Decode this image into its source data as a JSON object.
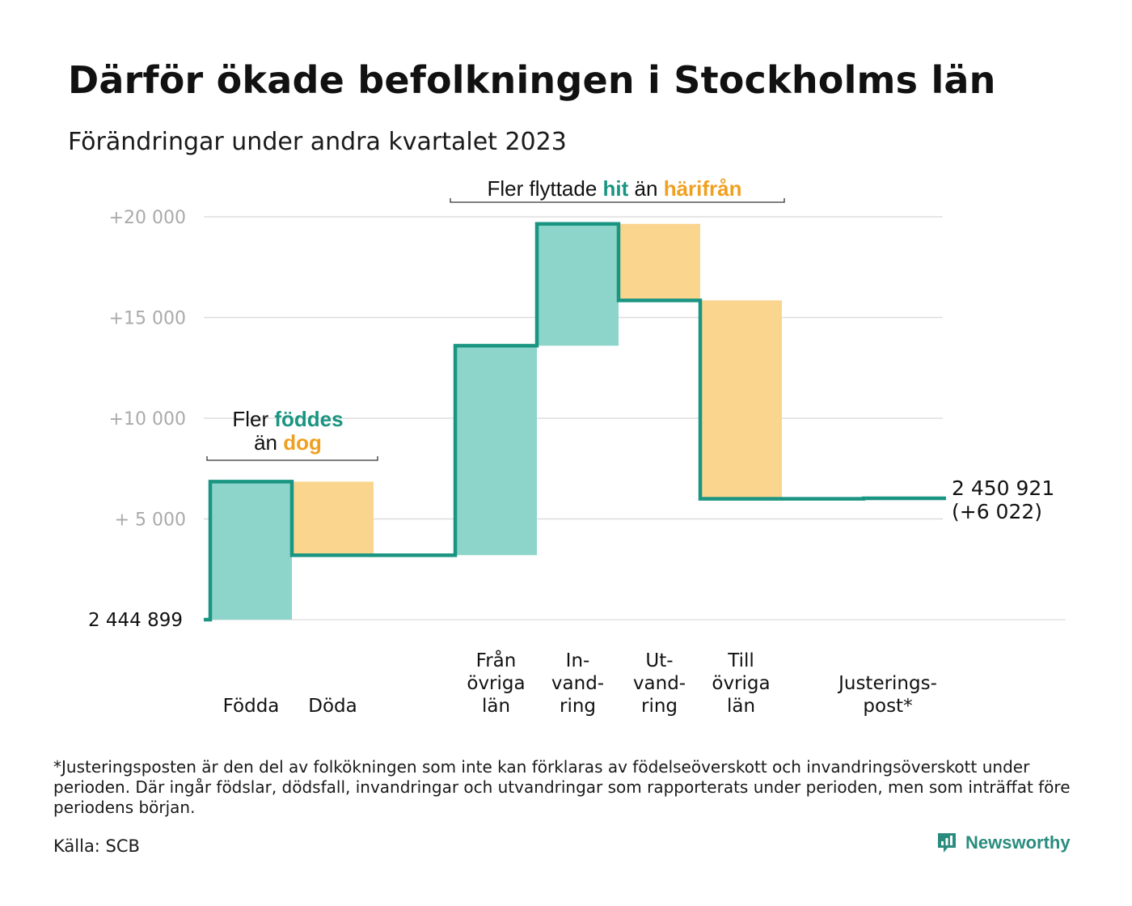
{
  "title": "Därför ökade befolkningen i Stockholms län",
  "subtitle": "Förändringar under andra kvartalet 2023",
  "footnote": "*Justeringsposten är den del av folkökningen som inte kan förklaras av födelseöverskott och invandringsöverskott under perioden. Där ingår födslar, dödsfall, invandringar och utvandringar som rapporterats under perioden, men som inträffat före periodens början.",
  "source": "Källa: SCB",
  "brand": {
    "name": "Newsworthy",
    "icon": "newsworthy-logo-icon"
  },
  "colors": {
    "increase": "#8dd4cb",
    "decrease": "#fad58e",
    "line": "#1a9582",
    "accent_teal": "#1a9582",
    "accent_orange": "#f0a020",
    "grid": "#dddddd",
    "tick": "#aaaaaa"
  },
  "chart_data": {
    "type": "waterfall",
    "base_label": "2  444   899",
    "end_label": "2 450 921",
    "end_change_label": "(+6 022)",
    "ylim": [
      0,
      20000
    ],
    "y_ticks": [
      {
        "value": 5000,
        "label": "+  5  000"
      },
      {
        "value": 10000,
        "label": "+10   000"
      },
      {
        "value": 15000,
        "label": "+15   000"
      },
      {
        "value": 20000,
        "label": "+20   000"
      }
    ],
    "steps": [
      {
        "label": "Födda",
        "lines": [
          "Födda"
        ],
        "start": 0,
        "end": 6850,
        "direction": "increase"
      },
      {
        "label": "Döda",
        "lines": [
          "Döda"
        ],
        "start": 6850,
        "end": 3200,
        "direction": "decrease"
      },
      {
        "label": "",
        "lines": [],
        "start": 3200,
        "end": 3200,
        "direction": "none"
      },
      {
        "label": "Från övriga län",
        "lines": [
          "Från",
          "övriga",
          "län"
        ],
        "start": 3200,
        "end": 13600,
        "direction": "increase"
      },
      {
        "label": "In-vand-ring",
        "lines": [
          "In-",
          "vand-",
          "ring"
        ],
        "start": 13600,
        "end": 19650,
        "direction": "increase"
      },
      {
        "label": "Ut-vand-ring",
        "lines": [
          "Ut-",
          "vand-",
          "ring"
        ],
        "start": 19650,
        "end": 15850,
        "direction": "decrease"
      },
      {
        "label": "Till övriga län",
        "lines": [
          "Till",
          "övriga",
          "län"
        ],
        "start": 15850,
        "end": 6000,
        "direction": "decrease"
      },
      {
        "label": "",
        "lines": [],
        "start": 6000,
        "end": 6000,
        "direction": "none"
      },
      {
        "label": "Justerings-post*",
        "lines": [
          "Justerings-",
          "post*"
        ],
        "start": 6000,
        "end": 6022,
        "direction": "increase"
      }
    ],
    "annotations": [
      {
        "id": "births",
        "parts": [
          {
            "line": 1,
            "text": "Fler ",
            "color": "text"
          },
          {
            "line": 1,
            "text": "föddes",
            "color": "teal"
          },
          {
            "line": 2,
            "text": "än ",
            "color": "text"
          },
          {
            "line": 2,
            "text": "dog",
            "color": "orange"
          }
        ]
      },
      {
        "id": "migration",
        "parts": [
          {
            "line": 1,
            "text": "Fler flyttade ",
            "color": "text"
          },
          {
            "line": 1,
            "text": "hit",
            "color": "teal"
          },
          {
            "line": 1,
            "text": "  än ",
            "color": "text"
          },
          {
            "line": 1,
            "text": "härifrån",
            "color": "orange"
          }
        ]
      }
    ]
  }
}
